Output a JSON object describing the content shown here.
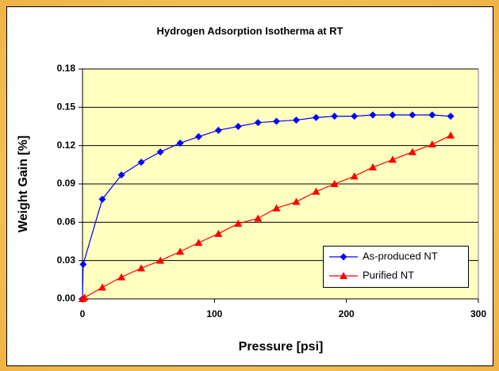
{
  "chart_data": {
    "type": "line",
    "title": "Hydrogen Adsorption Isotherma at RT",
    "x_label": "Pressure [psi]",
    "y_label": "Weight Gain [%]",
    "xlim": [
      0,
      300
    ],
    "xticks": [
      0,
      100,
      200,
      300
    ],
    "ylim": [
      0,
      0.18
    ],
    "yticks": [
      {
        "value": 0,
        "label": "0.00"
      },
      {
        "value": 0.03,
        "label": "0.03"
      },
      {
        "value": 0.06,
        "label": "0.06"
      },
      {
        "value": 0.09,
        "label": "0.09"
      },
      {
        "value": 0.12,
        "label": "0.12"
      },
      {
        "value": 0.15,
        "label": "0.15"
      },
      {
        "value": 0.18,
        "label": "0.18"
      }
    ],
    "grid": true,
    "legend": "bottom-right",
    "series": [
      {
        "name": "As-produced NT",
        "color": "#0000ff",
        "marker": "diamond",
        "x": [
          0,
          0.5,
          15,
          29.5,
          44.5,
          59,
          74,
          88,
          103,
          118,
          133,
          147,
          162,
          177,
          191,
          206,
          220,
          235,
          250,
          265,
          279
        ],
        "values": [
          0,
          0.027,
          0.078,
          0.097,
          0.107,
          0.115,
          0.122,
          0.127,
          0.132,
          0.135,
          0.138,
          0.139,
          0.14,
          0.142,
          0.143,
          0.143,
          0.144,
          0.144,
          0.144,
          0.144,
          0.143
        ]
      },
      {
        "name": "Purified NT",
        "color": "#ff0000",
        "marker": "triangle",
        "x": [
          0,
          1.5,
          15,
          29.5,
          44.5,
          59,
          74,
          88,
          103,
          118,
          133,
          147,
          162,
          177,
          191,
          206,
          220,
          235,
          250,
          265,
          279
        ],
        "values": [
          0,
          0.001,
          0.009,
          0.017,
          0.024,
          0.03,
          0.037,
          0.044,
          0.051,
          0.059,
          0.063,
          0.071,
          0.076,
          0.084,
          0.09,
          0.096,
          0.103,
          0.109,
          0.115,
          0.121,
          0.128
        ]
      }
    ]
  }
}
